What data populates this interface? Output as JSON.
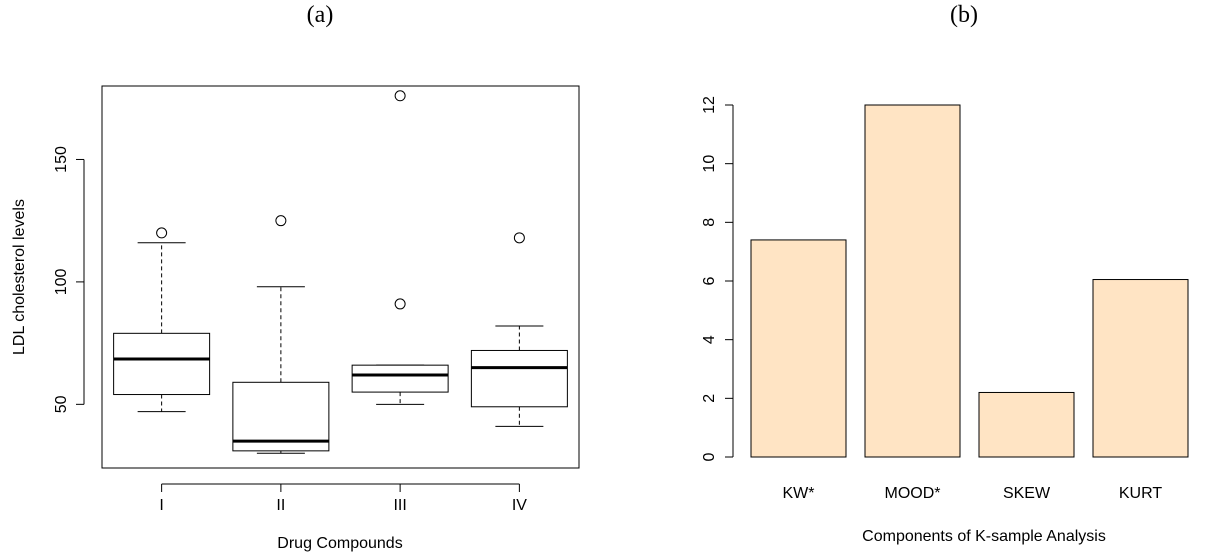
{
  "panels": {
    "a_label": "(a)",
    "b_label": "(b)"
  },
  "chart_data": [
    {
      "type": "box",
      "xlabel": "Drug Compounds",
      "ylabel": "LDL cholesterol levels",
      "categories": [
        "I",
        "II",
        "III",
        "IV"
      ],
      "ylim": [
        24,
        180
      ],
      "yticks": [
        50,
        100,
        150
      ],
      "boxes": [
        {
          "name": "I",
          "whisker_low": 47,
          "q1": 54,
          "median": 68.5,
          "q3": 79,
          "whisker_high": 116,
          "outliers": [
            120
          ]
        },
        {
          "name": "II",
          "whisker_low": 30,
          "q1": 31,
          "median": 35,
          "q3": 59,
          "whisker_high": 98,
          "outliers": [
            125
          ]
        },
        {
          "name": "III",
          "whisker_low": 50,
          "q1": 55,
          "median": 62,
          "q3": 66,
          "whisker_high": 66,
          "outliers": [
            91,
            176
          ]
        },
        {
          "name": "IV",
          "whisker_low": 41,
          "q1": 49,
          "median": 65,
          "q3": 72,
          "whisker_high": 82,
          "outliers": [
            118
          ]
        }
      ],
      "colors": {
        "box_fill": "#ffffff",
        "stroke": "#000000"
      }
    },
    {
      "type": "bar",
      "xlabel": "Components of K-sample Analysis",
      "ylabel": "",
      "categories": [
        "KW*",
        "MOOD*",
        "SKEW",
        "KURT"
      ],
      "values": [
        7.4,
        12.0,
        2.2,
        6.05
      ],
      "ylim": [
        0,
        12
      ],
      "yticks": [
        0,
        2,
        4,
        6,
        8,
        10,
        12
      ],
      "colors": {
        "bar_fill": "#FFE4C4",
        "stroke": "#000000"
      }
    }
  ]
}
